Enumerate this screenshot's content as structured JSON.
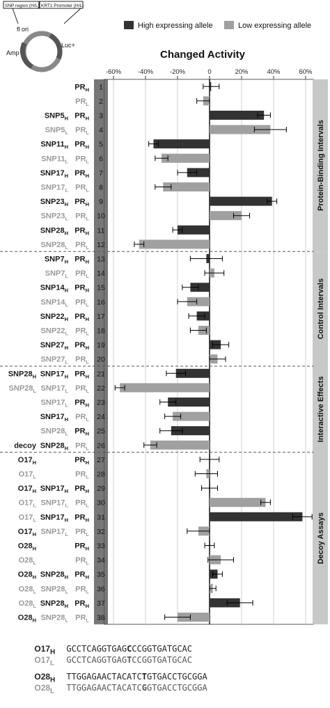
{
  "construct": {
    "snp_box": "SNP region (H/L)",
    "promoter_box": "KRT1 Promoter (H/L)",
    "labels": [
      "fl ori",
      "Luc+",
      "Amp"
    ]
  },
  "legend": {
    "high": "High expressing allele",
    "low": "Low expressing allele",
    "high_color": "#333333",
    "low_color": "#a0a0a0"
  },
  "chart_data": {
    "type": "bar",
    "orientation": "horizontal",
    "title": "Changed Activity",
    "xlim": [
      -0.65,
      0.65
    ],
    "xticks": [
      "-60%",
      "-40%",
      "-20%",
      "0",
      "20%",
      "40%",
      "60%"
    ],
    "grid": "vertical",
    "legend_position": "top",
    "groups": [
      {
        "label": "Protein-Binding Intervals",
        "rows": [
          1,
          12
        ]
      },
      {
        "label": "Control Intervals",
        "rows": [
          13,
          20
        ]
      },
      {
        "label": "Interactive Effects",
        "rows": [
          21,
          26
        ]
      },
      {
        "label": "Decoy Assays",
        "rows": [
          27,
          38
        ]
      }
    ],
    "rows": [
      {
        "n": 1,
        "allele": "high",
        "cols": [
          "",
          "",
          "PR;H"
        ],
        "value": 0.01,
        "err": 0.05
      },
      {
        "n": 2,
        "allele": "low",
        "cols": [
          "",
          "",
          "PR;L"
        ],
        "value": -0.04,
        "err": 0.04
      },
      {
        "n": 3,
        "allele": "high",
        "cols": [
          "",
          "SNP5;H",
          "PR;H"
        ],
        "value": 0.34,
        "err": 0.04
      },
      {
        "n": 4,
        "allele": "low",
        "cols": [
          "",
          "SNP5;L",
          "PR;L"
        ],
        "value": 0.38,
        "err": 0.1
      },
      {
        "n": 5,
        "allele": "high",
        "cols": [
          "",
          "SNP11;H",
          "PR;H"
        ],
        "value": -0.35,
        "err": 0.03
      },
      {
        "n": 6,
        "allele": "low",
        "cols": [
          "",
          "SNP11;L",
          "PR;L"
        ],
        "value": -0.3,
        "err": 0.04
      },
      {
        "n": 7,
        "allele": "high",
        "cols": [
          "",
          "SNP17;H",
          "PR;H"
        ],
        "value": -0.14,
        "err": 0.06
      },
      {
        "n": 8,
        "allele": "low",
        "cols": [
          "",
          "SNP17;L",
          "PR;L"
        ],
        "value": -0.29,
        "err": 0.05
      },
      {
        "n": 9,
        "allele": "high",
        "cols": [
          "",
          "SNP23;H",
          "PR;H"
        ],
        "value": 0.39,
        "err": 0.03
      },
      {
        "n": 10,
        "allele": "low",
        "cols": [
          "",
          "SNP23;L",
          "PR;L"
        ],
        "value": 0.2,
        "err": 0.05
      },
      {
        "n": 11,
        "allele": "high",
        "cols": [
          "",
          "SNP28;H",
          "PR;H"
        ],
        "value": -0.2,
        "err": 0.03
      },
      {
        "n": 12,
        "allele": "low",
        "cols": [
          "",
          "SNP28;L",
          "PR;L"
        ],
        "value": -0.44,
        "err": 0.03
      },
      {
        "n": 13,
        "allele": "high",
        "cols": [
          "",
          "SNP7;H",
          "PR;H"
        ],
        "value": -0.02,
        "err": 0.1
      },
      {
        "n": 14,
        "allele": "low",
        "cols": [
          "",
          "SNP7;L",
          "PR;L"
        ],
        "value": 0.03,
        "err": 0.06
      },
      {
        "n": 15,
        "allele": "high",
        "cols": [
          "",
          "SNP14;H",
          "PR;H"
        ],
        "value": -0.12,
        "err": 0.05
      },
      {
        "n": 16,
        "allele": "low",
        "cols": [
          "",
          "SNP14;L",
          "PR;L"
        ],
        "value": -0.14,
        "err": 0.06
      },
      {
        "n": 17,
        "allele": "high",
        "cols": [
          "",
          "SNP22;H",
          "PR;H"
        ],
        "value": -0.08,
        "err": 0.05
      },
      {
        "n": 18,
        "allele": "low",
        "cols": [
          "",
          "SNP22;L",
          "PR;L"
        ],
        "value": -0.07,
        "err": 0.05
      },
      {
        "n": 19,
        "allele": "high",
        "cols": [
          "",
          "SNP27;H",
          "PR;H"
        ],
        "value": 0.07,
        "err": 0.05
      },
      {
        "n": 20,
        "allele": "low",
        "cols": [
          "",
          "SNP27;L",
          "PR;L"
        ],
        "value": 0.05,
        "err": 0.05
      },
      {
        "n": 21,
        "allele": "high",
        "cols": [
          "SNP28;H",
          "SNP17;H",
          "PR;H"
        ],
        "value": -0.21,
        "err": 0.06
      },
      {
        "n": 22,
        "allele": "low",
        "cols": [
          "SNP28;L",
          "SNP17;L",
          "PR;L"
        ],
        "value": -0.56,
        "err": 0.03
      },
      {
        "n": 23,
        "allele": "mixed",
        "cols": [
          "",
          "SNP17;L",
          "PR;H"
        ],
        "value": -0.26,
        "err": 0.05
      },
      {
        "n": 24,
        "allele": "low",
        "cols": [
          "",
          "SNP17;H",
          "PR;L"
        ],
        "value": -0.23,
        "err": 0.05
      },
      {
        "n": 25,
        "allele": "mixed",
        "cols": [
          "",
          "SNP28;L",
          "PR;H"
        ],
        "value": -0.24,
        "err": 0.07
      },
      {
        "n": 26,
        "allele": "low",
        "cols": [
          "decoy",
          "SNP28;H",
          "PR;L"
        ],
        "value": -0.37,
        "err": 0.04
      },
      {
        "n": 27,
        "allele": "high",
        "cols": [
          "O17;H",
          "",
          "PR;H"
        ],
        "value": 0.0,
        "err": 0.06
      },
      {
        "n": 28,
        "allele": "low",
        "cols": [
          "O17;L",
          "",
          "PR;L"
        ],
        "value": -0.02,
        "err": 0.07
      },
      {
        "n": 29,
        "allele": "high",
        "cols": [
          "O17;H",
          "SNP17;H",
          "PR;H"
        ],
        "value": 0.0,
        "err": 0.05
      },
      {
        "n": 30,
        "allele": "low",
        "cols": [
          "O17;L",
          "SNP17;L",
          "PR;L"
        ],
        "value": 0.35,
        "err": 0.03
      },
      {
        "n": 31,
        "allele": "high",
        "cols": [
          "O17;L",
          "SNP17;H",
          "PR;H"
        ],
        "value": 0.58,
        "err": 0.06
      },
      {
        "n": 32,
        "allele": "low",
        "cols": [
          "O17;H",
          "SNP17;L",
          "PR;L"
        ],
        "value": -0.07,
        "err": 0.07
      },
      {
        "n": 33,
        "allele": "high",
        "cols": [
          "O28;H",
          "",
          "PR;H"
        ],
        "value": 0.0,
        "err": 0.03
      },
      {
        "n": 34,
        "allele": "low",
        "cols": [
          "O28;L",
          "",
          "PR;L"
        ],
        "value": 0.07,
        "err": 0.08
      },
      {
        "n": 35,
        "allele": "high",
        "cols": [
          "O28;H",
          "SNP28;H",
          "PR;H"
        ],
        "value": 0.05,
        "err": 0.03
      },
      {
        "n": 36,
        "allele": "low",
        "cols": [
          "O28;L",
          "SNP28;L",
          "PR;L"
        ],
        "value": 0.02,
        "err": 0.02
      },
      {
        "n": 37,
        "allele": "high",
        "cols": [
          "O28;L",
          "SNP28;H",
          "PR;H"
        ],
        "value": 0.19,
        "err": 0.08
      },
      {
        "n": 38,
        "allele": "low",
        "cols": [
          "O28;H",
          "SNP28;L",
          "PR;L"
        ],
        "value": -0.2,
        "err": 0.08
      }
    ]
  },
  "sequences": [
    {
      "name": "O17",
      "allele": "H",
      "pre": "GCCTCAGGTGAG",
      "bold": "C",
      "post": "CCGGTGATGCAC"
    },
    {
      "name": "O17",
      "allele": "L",
      "pre": "GCCTCAGGTGAG",
      "bold": "T",
      "post": "CCGGTGATGCAC"
    },
    {
      "name": "O28",
      "allele": "H",
      "pre": "TTGGAGAACTACATC",
      "bold": "T",
      "post": "GTGACCTGCGGA"
    },
    {
      "name": "O28",
      "allele": "L",
      "pre": "TTGGAGAACTACATC",
      "bold": "G",
      "post": "GTGACCTGCGGA"
    }
  ]
}
